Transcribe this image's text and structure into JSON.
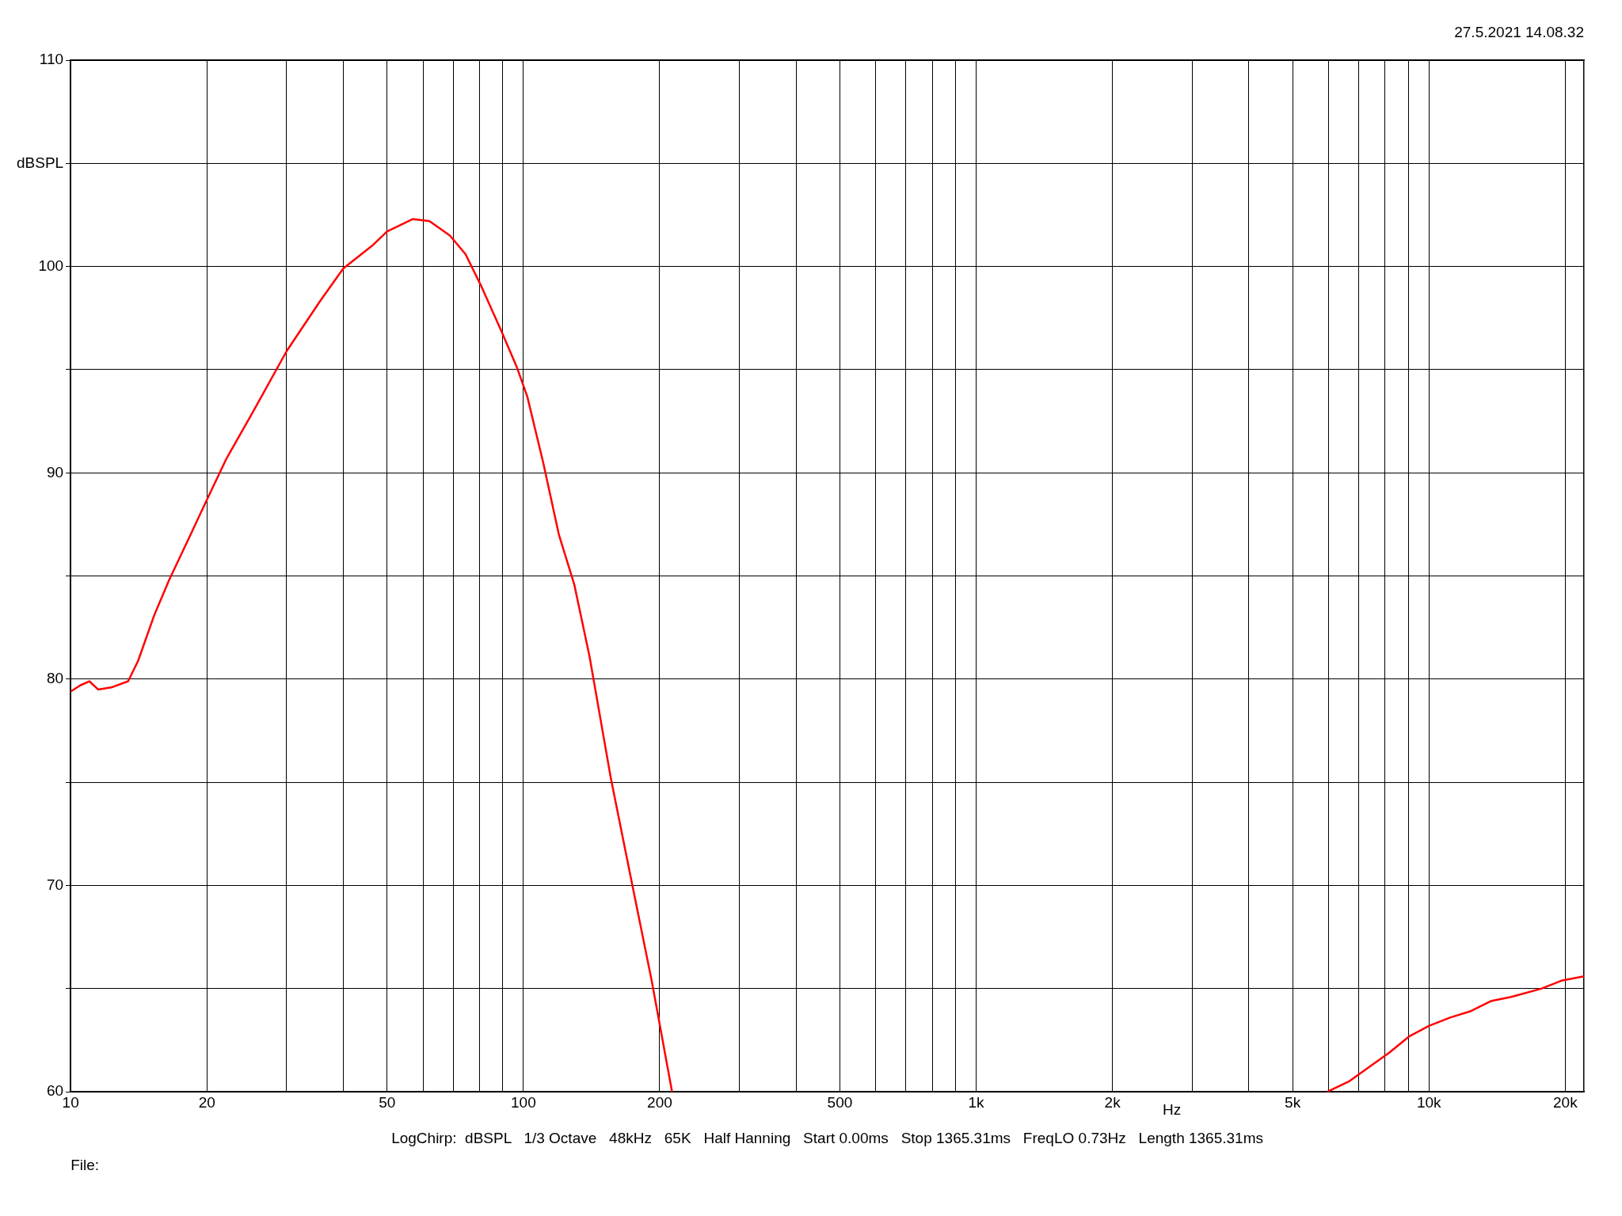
{
  "chart_data": {
    "type": "line",
    "xlabel": "Hz",
    "log": "x",
    "grid": true,
    "marker": "none",
    "line_style": "solid",
    "annotations": [
      "27.5.2021 14.08.32",
      "LogChirp:  dBSPL   1/3 Octave   48kHz   65K   Half Hanning   Start 0.00ms   Stop 1365.31ms   FreqLO 0.73Hz   Length 1365.31ms",
      "File:"
    ],
    "xlim": [
      10,
      22000
    ],
    "xticks": [
      10,
      {
        "value": 20,
        "label": "20"
      },
      {
        "value": 30,
        "label": null
      },
      {
        "value": 40,
        "label": null
      },
      50,
      {
        "value": 60,
        "label": null
      },
      {
        "value": 70,
        "label": null
      },
      {
        "value": 80,
        "label": null
      },
      {
        "value": 90,
        "label": null
      },
      100,
      200,
      {
        "value": 300,
        "label": null
      },
      {
        "value": 400,
        "label": null
      },
      500,
      {
        "value": 600,
        "label": null
      },
      {
        "value": 700,
        "label": null
      },
      {
        "value": 800,
        "label": null
      },
      {
        "value": 900,
        "label": null
      },
      {
        "value": 1000,
        "label": "1k"
      },
      {
        "value": 2000,
        "label": "2k"
      },
      {
        "value": 3000,
        "label": null
      },
      {
        "value": 4000,
        "label": null
      },
      {
        "value": 5000,
        "label": "5k"
      },
      {
        "value": 6000,
        "label": null
      },
      {
        "value": 7000,
        "label": null
      },
      {
        "value": 8000,
        "label": null
      },
      {
        "value": 9000,
        "label": null
      },
      {
        "value": 10000,
        "label": "10k"
      },
      {
        "value": 20000,
        "label": "20k"
      }
    ],
    "ylim": [
      60,
      110
    ],
    "yticks": [
      60,
      {
        "value": 65,
        "label": null
      },
      70,
      {
        "value": 75,
        "label": null
      },
      80,
      {
        "value": 85,
        "label": null
      },
      90,
      {
        "value": 95,
        "label": null
      },
      100,
      {
        "value": 105,
        "label": "dBSPL"
      },
      110
    ],
    "series": [
      {
        "color": "#ff0000",
        "x": [
          10,
          10.5,
          11,
          11.5,
          12.3,
          13.4,
          14.1,
          15.3,
          16.5,
          18.4,
          20,
          22.1,
          25.2,
          30,
          35.5,
          40,
          46.3,
          50,
          57,
          62,
          68.8,
          74.5,
          80.5,
          89.3,
          96.8,
          102,
          110.6,
          119.8,
          129.5,
          140,
          156,
          173,
          192,
          213,
          1000,
          5960,
          6650,
          7370,
          8170,
          9060,
          10000,
          11130,
          12330,
          13700,
          15200,
          17700,
          19700,
          22000
        ],
        "values": [
          79.4,
          79.7,
          79.9,
          79.5,
          79.6,
          79.9,
          80.9,
          83.1,
          84.8,
          87.0,
          88.7,
          90.7,
          92.9,
          95.9,
          98.3,
          99.9,
          101.0,
          101.7,
          102.3,
          102.2,
          101.5,
          100.6,
          99.1,
          96.9,
          95.1,
          93.7,
          90.5,
          87.0,
          84.6,
          81.1,
          75.2,
          70.3,
          65.4,
          60,
          null,
          60,
          60.5,
          61.2,
          61.9,
          62.7,
          63.2,
          63.6,
          63.9,
          64.4,
          64.6,
          65.0,
          65.4,
          65.6
        ]
      }
    ]
  }
}
